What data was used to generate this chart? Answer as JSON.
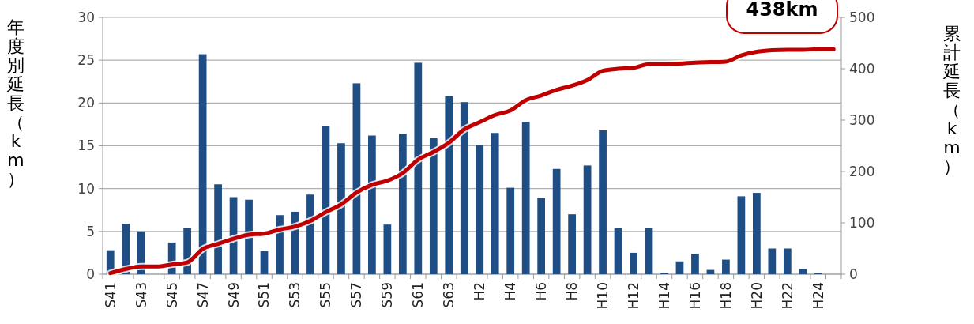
{
  "chart_data": {
    "type": "bar",
    "ylabel": "年度別延長（km）",
    "y2label": "累計延長（km）",
    "categories": [
      "S41",
      null,
      "S43",
      null,
      "S45",
      null,
      "S47",
      null,
      "S49",
      null,
      "S51",
      null,
      "S53",
      null,
      "S55",
      null,
      "S57",
      null,
      "S59",
      null,
      "S61",
      null,
      "S63",
      null,
      "H2",
      null,
      "H4",
      null,
      "H6",
      null,
      "H8",
      null,
      "H10",
      null,
      "H12",
      null,
      "H14",
      null,
      "H16",
      null,
      "H18",
      null,
      "H20",
      null,
      "H22",
      null,
      "H24",
      null
    ],
    "series": [
      {
        "color": "#1f4e85",
        "values": [
          2.8,
          5.9,
          5.0,
          0,
          3.7,
          5.4,
          25.7,
          10.5,
          9.0,
          8.7,
          2.7,
          6.9,
          7.3,
          9.3,
          17.3,
          15.3,
          22.3,
          16.2,
          5.8,
          16.4,
          24.7,
          15.9,
          20.8,
          20.1,
          15.1,
          16.5,
          10.1,
          17.8,
          8.9,
          12.3,
          7.0,
          12.7,
          16.8,
          5.4,
          2.5,
          5.4,
          0.1,
          1.5,
          2.4,
          0.5,
          1.7,
          9.1,
          9.5,
          3.0,
          3.0,
          0.6,
          0.1,
          0
        ]
      },
      {
        "type": "line",
        "axis": "y2",
        "color": "#c00000",
        "values": [
          2,
          10,
          15,
          15,
          19,
          23,
          49,
          59,
          69,
          77,
          79,
          87,
          93,
          104,
          121,
          136,
          159,
          174,
          182,
          197,
          223,
          238,
          256,
          282,
          296,
          310,
          319,
          339,
          348,
          359,
          367,
          378,
          396,
          400,
          402,
          409,
          409,
          410,
          412,
          413,
          414,
          426,
          433,
          436,
          437,
          437,
          438,
          438
        ]
      }
    ],
    "ylim": [
      0,
      30
    ],
    "yticks": [
      0,
      5,
      10,
      15,
      20,
      25,
      30
    ],
    "y2lim": [
      0,
      500
    ],
    "y2ticks": [
      0,
      100,
      200,
      300,
      400,
      500
    ],
    "grid": "y",
    "annotations": [
      "438km"
    ]
  }
}
